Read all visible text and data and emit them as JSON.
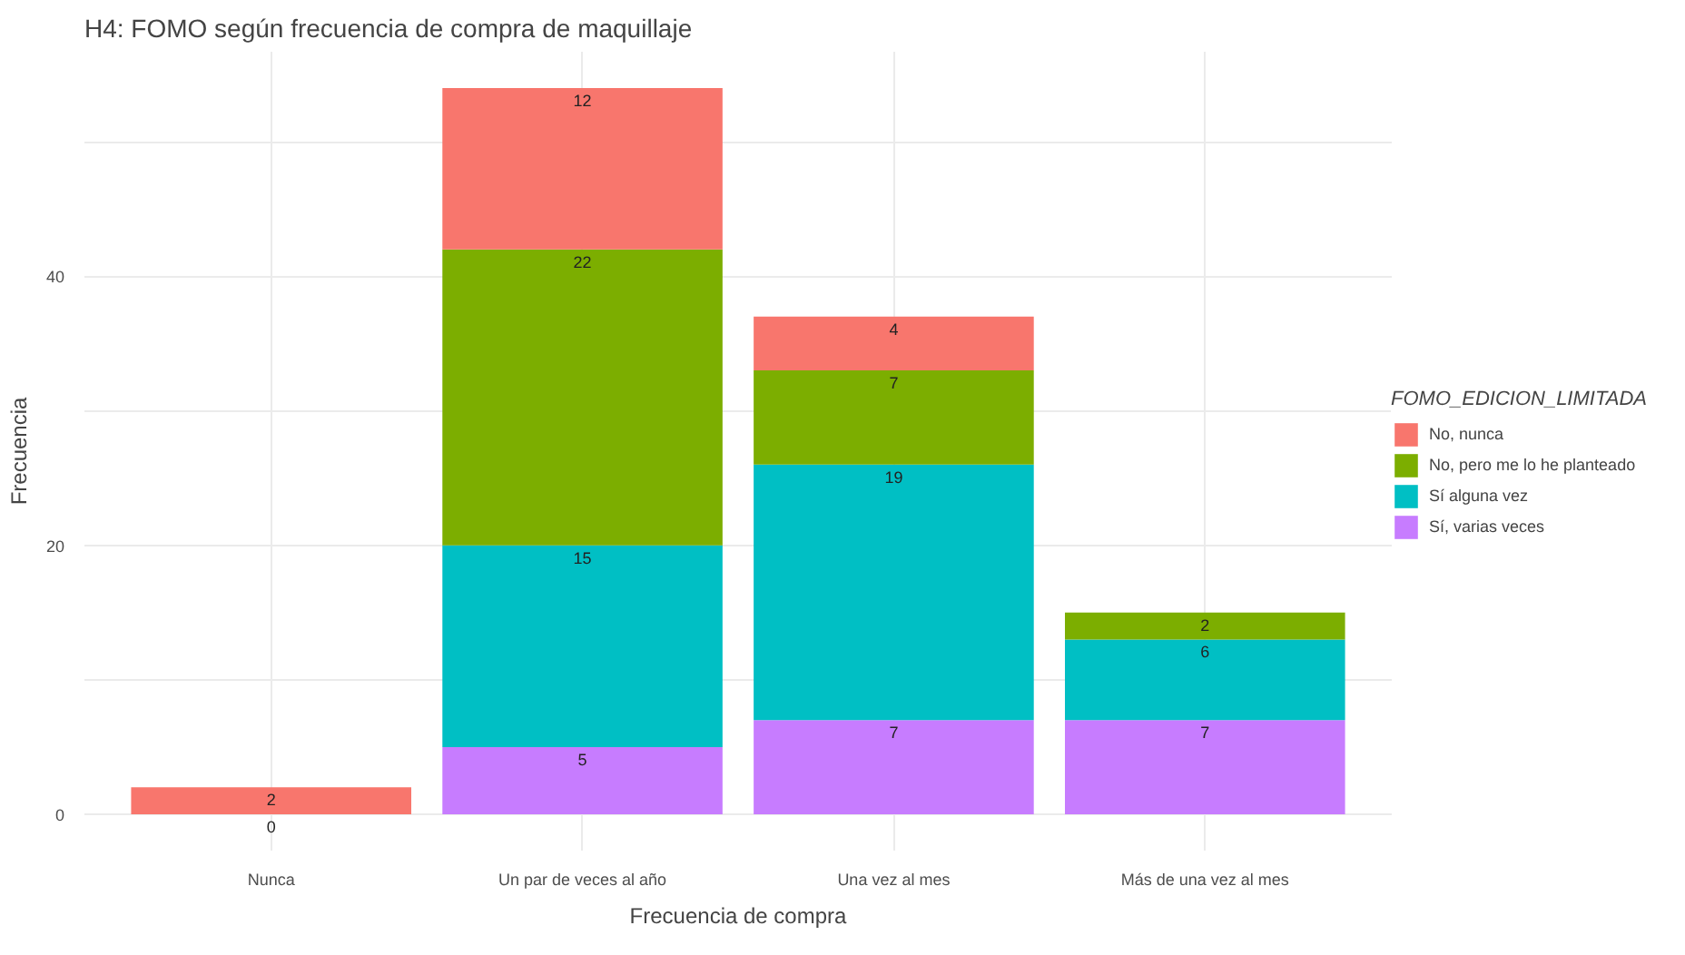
{
  "chart_data": {
    "type": "bar",
    "stacked": true,
    "title": "H4: FOMO según frecuencia de compra de maquillaje",
    "xlabel": "Frecuencia de compra",
    "ylabel": "Frecuencia",
    "legend_title": "FOMO_EDICION_LIMITADA",
    "categories": [
      "Nunca",
      "Un par de veces al año",
      "Una vez al mes",
      "Más de una vez al mes"
    ],
    "series": [
      {
        "name": "Sí, varias veces",
        "color": "#c77cff",
        "values": [
          0,
          5,
          7,
          7
        ]
      },
      {
        "name": "Sí alguna vez",
        "color": "#00bfc4",
        "values": [
          null,
          15,
          19,
          6
        ]
      },
      {
        "name": "No, pero me lo he planteado",
        "color": "#7cae00",
        "values": [
          null,
          22,
          7,
          2
        ]
      },
      {
        "name": "No, nunca",
        "color": "#f8766d",
        "values": [
          2,
          12,
          4,
          null
        ]
      }
    ],
    "data_labels": true,
    "ylim": [
      -2.7,
      56.7
    ],
    "yticks": [
      0,
      {
        "value": 10,
        "label": null
      },
      20,
      {
        "value": 30,
        "label": null
      },
      40,
      {
        "value": 50,
        "label": null
      }
    ],
    "grid": true,
    "legend": "right"
  }
}
